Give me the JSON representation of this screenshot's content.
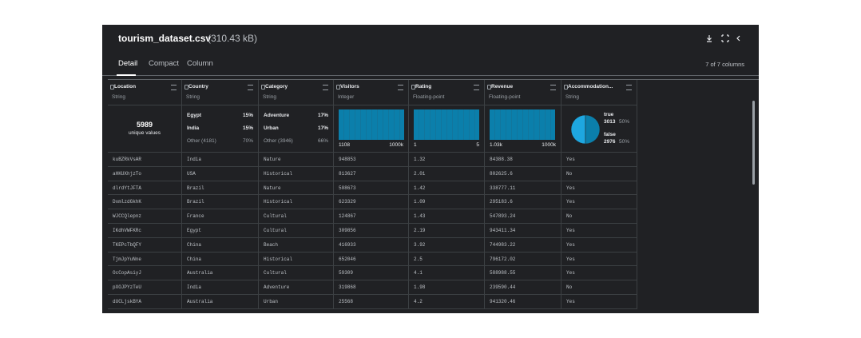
{
  "header": {
    "title": "tourism_dataset.csv",
    "size": "(310.43 kB)"
  },
  "tabs": [
    "Detail",
    "Compact",
    "Column"
  ],
  "columns_selector": "7 of 7 columns",
  "table": {
    "columns": [
      {
        "name": "Location",
        "type": "String",
        "summary": {
          "count": "5989",
          "label": "unique values"
        }
      },
      {
        "name": "Country",
        "type": "String",
        "summary": {
          "items": [
            {
              "label": "Egypt",
              "pct": "15%"
            },
            {
              "label": "India",
              "pct": "15%"
            },
            {
              "label": "Other (4181)",
              "pct": "70%"
            }
          ]
        }
      },
      {
        "name": "Category",
        "type": "String",
        "summary": {
          "items": [
            {
              "label": "Adventure",
              "pct": "17%"
            },
            {
              "label": "Urban",
              "pct": "17%"
            },
            {
              "label": "Other (3946)",
              "pct": "66%"
            }
          ]
        }
      },
      {
        "name": "Visitors",
        "type": "Integer",
        "summary": {
          "min": "1108",
          "max": "1000k"
        }
      },
      {
        "name": "Rating",
        "type": "Floating-point",
        "summary": {
          "min": "1",
          "max": "5"
        }
      },
      {
        "name": "Revenue",
        "type": "Floating-point",
        "summary": {
          "min": "1.03k",
          "max": "1000k"
        }
      },
      {
        "name": "Accommodation...",
        "type": "String",
        "summary": {
          "bool": [
            {
              "label": "true",
              "count": "3013",
              "pct": "50%"
            },
            {
              "label": "false",
              "count": "2976",
              "pct": "50%"
            }
          ]
        }
      }
    ],
    "rows": [
      [
        "kuBZRkVsAR",
        "India",
        "Nature",
        "948853",
        "1.32",
        "84388.38",
        "Yes"
      ],
      [
        "aHKUXhjzTo",
        "USA",
        "Historical",
        "813627",
        "2.01",
        "802625.6",
        "No"
      ],
      [
        "dlrdYtJFTA",
        "Brazil",
        "Nature",
        "508673",
        "1.42",
        "338777.11",
        "Yes"
      ],
      [
        "DxmlzdGkhK",
        "Brazil",
        "Historical",
        "623329",
        "1.09",
        "295183.6",
        "Yes"
      ],
      [
        "WJCCQlepnz",
        "France",
        "Cultural",
        "124867",
        "1.43",
        "547893.24",
        "No"
      ],
      [
        "IKdhVWFKRc",
        "Egypt",
        "Cultural",
        "309856",
        "2.19",
        "943411.34",
        "Yes"
      ],
      [
        "TKEPcTbQFY",
        "China",
        "Beach",
        "416933",
        "3.92",
        "744983.22",
        "Yes"
      ],
      [
        "TjmJpYuNne",
        "China",
        "Historical",
        "652046",
        "2.5",
        "796172.02",
        "Yes"
      ],
      [
        "OcCopAsiyJ",
        "Australia",
        "Cultural",
        "59309",
        "4.1",
        "588988.55",
        "Yes"
      ],
      [
        "pXOJPYzTeU",
        "India",
        "Adventure",
        "319868",
        "1.98",
        "239590.44",
        "No"
      ],
      [
        "dUCLjskBYA",
        "Australia",
        "Urban",
        "25568",
        "4.2",
        "941320.46",
        "Yes"
      ]
    ]
  }
}
